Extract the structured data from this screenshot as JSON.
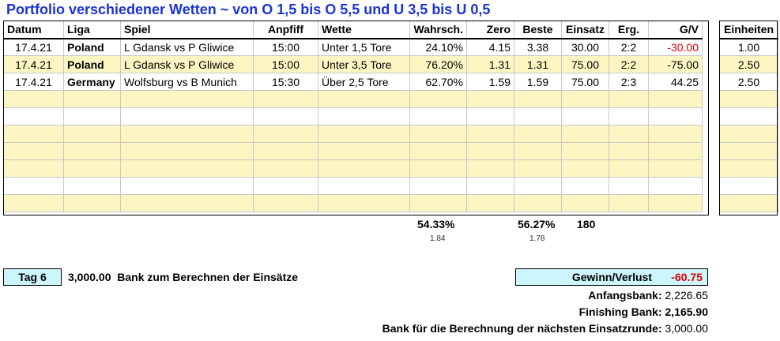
{
  "title": "Portfolio verschiedener Wetten ~ von O 1,5 bis O 5,5 und U 3,5 bis U 0,5",
  "headers": {
    "datum": "Datum",
    "liga": "Liga",
    "spiel": "Spiel",
    "anpfiff": "Anpfiff",
    "wette": "Wette",
    "wahrsch": "Wahrsch.",
    "zero": "Zero",
    "beste": "Beste",
    "einsatz": "Einsatz",
    "erg": "Erg.",
    "gv": "G/V",
    "einheiten": "Einheiten"
  },
  "rows": [
    {
      "datum": "17.4.21",
      "liga": "Poland",
      "spiel": "L Gdansk vs P Gliwice",
      "anpfiff": "15:00",
      "wette": "Unter 1,5 Tore",
      "wahrsch": "24.10%",
      "zero": "4.15",
      "beste": "3.38",
      "einsatz": "30.00",
      "erg": "2:2",
      "gv": "-30.00",
      "einheiten": "1.00"
    },
    {
      "datum": "17.4.21",
      "liga": "Poland",
      "spiel": "L Gdansk vs P Gliwice",
      "anpfiff": "15:00",
      "wette": "Unter 3,5 Tore",
      "wahrsch": "76.20%",
      "zero": "1.31",
      "beste": "1.31",
      "einsatz": "75.00",
      "erg": "2:2",
      "gv": "-75.00",
      "einheiten": "2.50"
    },
    {
      "datum": "17.4.21",
      "liga": "Germany",
      "spiel": "Wolfsburg vs B Munich",
      "anpfiff": "15:30",
      "wette": "Über 2,5 Tore",
      "wahrsch": "62.70%",
      "zero": "1.59",
      "beste": "1.59",
      "einsatz": "75.00",
      "erg": "2:3",
      "gv": "44.25",
      "einheiten": "2.50"
    }
  ],
  "summary": {
    "wahrsch_avg": "54.33%",
    "wahrsch_odds": "1.84",
    "beste_avg": "56.27%",
    "beste_odds": "1.78",
    "einsatz_total": "180"
  },
  "footer": {
    "tag": "Tag 6",
    "bank_amount": "3,000.00",
    "bank_label": "Bank zum Berechnen der Einsätze",
    "gv_label": "Gewinn/Verlust",
    "gv_value": "-60.75",
    "anfangsbank_label": "Anfangsbank:",
    "anfangsbank_value": "2,226.65",
    "finishing_label": "Finishing Bank:",
    "finishing_value": "2,165.90",
    "naechste_label": "Bank für die Berechnung der nächsten Einsatzrunde:",
    "naechste_value": "3,000.00"
  },
  "colors": {
    "title": "#1a33d6",
    "negative": "#e00000",
    "stripe": "#fdf6c3",
    "highlight": "#ccf6fb"
  }
}
